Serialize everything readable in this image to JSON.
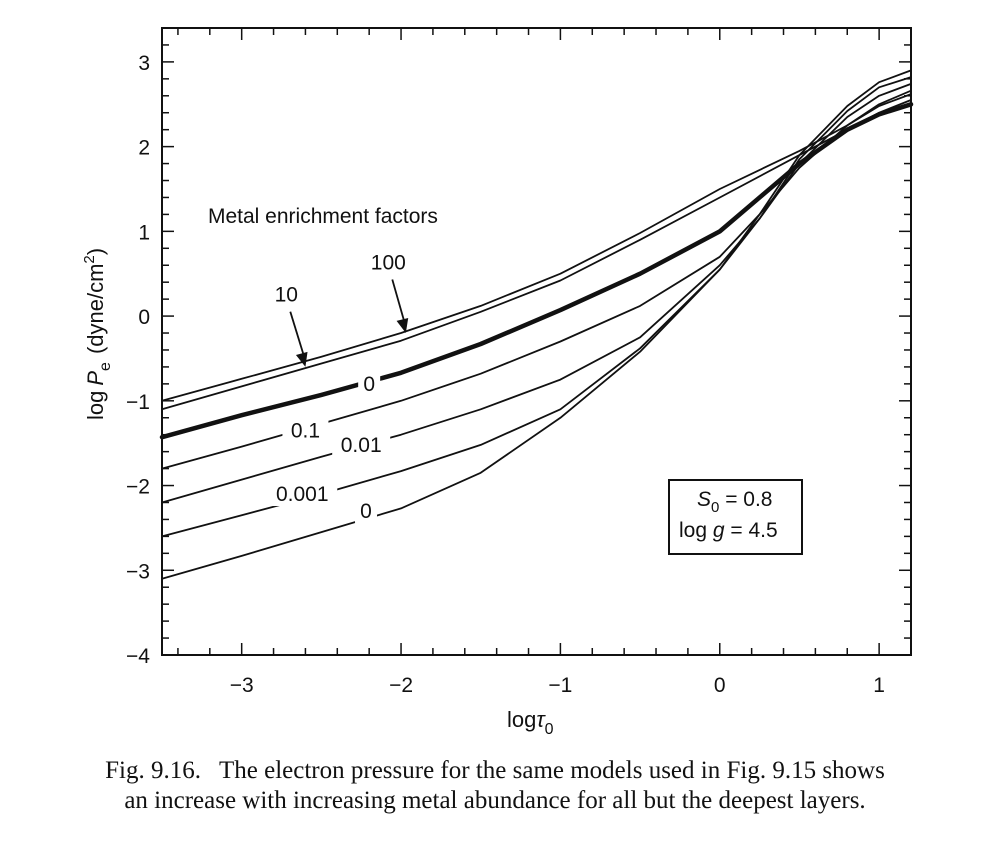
{
  "chart_data": {
    "type": "line",
    "xlabel_main": "log",
    "xlabel_symbol": "τ",
    "xlabel_sub": "0",
    "ylabel_main": "log",
    "ylabel_symbol": "P",
    "ylabel_sub": "e",
    "ylabel_units": "(dyne/cm",
    "ylabel_units_sup": "2",
    "ylabel_units_close": ")",
    "xlim": [
      -3.5,
      1.2
    ],
    "ylim": [
      -4,
      3.4
    ],
    "xticks": [
      {
        "value": -3,
        "label": "−3"
      },
      {
        "value": -2,
        "label": "−2"
      },
      {
        "value": -1,
        "label": "−1"
      },
      {
        "value": 0,
        "label": "0"
      },
      {
        "value": 1,
        "label": "1"
      }
    ],
    "yticks": [
      {
        "value": 3,
        "label": "3"
      },
      {
        "value": 2,
        "label": "2"
      },
      {
        "value": 1,
        "label": "1"
      },
      {
        "value": 0,
        "label": "0"
      },
      {
        "value": -1,
        "label": "−1"
      },
      {
        "value": -2,
        "label": "−2"
      },
      {
        "value": -3,
        "label": "−3"
      },
      {
        "value": -4,
        "label": "−4"
      }
    ],
    "legend_title": "Metal enrichment factors",
    "series": [
      {
        "name": "100",
        "style": "double-upper",
        "x": [
          -3.5,
          -3.0,
          -2.5,
          -2.0,
          -1.5,
          -1.0,
          -0.5,
          0.0,
          0.5,
          0.8,
          1.0,
          1.2
        ],
        "y": [
          -1.0,
          -0.74,
          -0.48,
          -0.2,
          0.12,
          0.5,
          0.98,
          1.5,
          1.95,
          2.25,
          2.48,
          2.62
        ]
      },
      {
        "name": "10",
        "style": "double-lower",
        "x": [
          -3.5,
          -3.0,
          -2.5,
          -2.0,
          -1.5,
          -1.0,
          -0.5,
          0.0,
          0.5,
          0.8,
          1.0,
          1.2
        ],
        "y": [
          -1.1,
          -0.83,
          -0.56,
          -0.29,
          0.05,
          0.42,
          0.9,
          1.4,
          1.9,
          2.2,
          2.4,
          2.55
        ]
      },
      {
        "name": "0",
        "style": "bold",
        "x": [
          -3.5,
          -3.0,
          -2.5,
          -2.0,
          -1.5,
          -1.0,
          -0.5,
          0.0,
          0.5,
          0.8,
          1.0,
          1.2
        ],
        "y": [
          -1.43,
          -1.17,
          -0.93,
          -0.67,
          -0.33,
          0.07,
          0.5,
          1.0,
          1.8,
          2.2,
          2.38,
          2.5
        ]
      },
      {
        "name": "0.1",
        "style": "thin",
        "x": [
          -3.5,
          -3.0,
          -2.5,
          -2.0,
          -1.5,
          -1.0,
          -0.5,
          0.0,
          0.25,
          0.5,
          0.8,
          1.0,
          1.2
        ],
        "y": [
          -1.8,
          -1.54,
          -1.27,
          -1.0,
          -0.68,
          -0.3,
          0.12,
          0.7,
          1.2,
          1.75,
          2.25,
          2.5,
          2.66
        ]
      },
      {
        "name": "0.01",
        "style": "thin",
        "x": [
          -3.5,
          -3.0,
          -2.5,
          -2.0,
          -1.5,
          -1.0,
          -0.5,
          0.0,
          0.25,
          0.5,
          0.8,
          1.0,
          1.2
        ],
        "y": [
          -2.2,
          -1.93,
          -1.66,
          -1.4,
          -1.1,
          -0.75,
          -0.25,
          0.6,
          1.15,
          1.8,
          2.35,
          2.6,
          2.74
        ]
      },
      {
        "name": "0.001",
        "style": "thin",
        "x": [
          -3.5,
          -3.0,
          -2.5,
          -2.0,
          -1.5,
          -1.0,
          -0.5,
          0.0,
          0.25,
          0.5,
          0.8,
          1.0,
          1.2
        ],
        "y": [
          -2.6,
          -2.35,
          -2.1,
          -1.83,
          -1.52,
          -1.1,
          -0.38,
          0.55,
          1.15,
          1.85,
          2.42,
          2.7,
          2.82
        ]
      },
      {
        "name": "0",
        "style": "thin",
        "x": [
          -3.5,
          -3.0,
          -2.5,
          -2.0,
          -1.5,
          -1.0,
          -0.5,
          0.0,
          0.25,
          0.5,
          0.8,
          1.0,
          1.2
        ],
        "y": [
          -3.1,
          -2.83,
          -2.55,
          -2.27,
          -1.85,
          -1.2,
          -0.42,
          0.55,
          1.2,
          1.9,
          2.48,
          2.76,
          2.9
        ]
      }
    ],
    "curve_labels": [
      {
        "text": "0",
        "x": -2.2,
        "y": -0.8
      },
      {
        "text": "0.1",
        "x": -2.6,
        "y": -1.35
      },
      {
        "text": "0.01",
        "x": -2.25,
        "y": -1.52
      },
      {
        "text": "0.001",
        "x": -2.62,
        "y": -2.1
      },
      {
        "text": "0",
        "x": -2.22,
        "y": -2.3
      }
    ],
    "arrow_labels": [
      {
        "text": "10",
        "label_x": -2.72,
        "label_y": 0.17,
        "tip_x": -2.6,
        "tip_y": -0.6
      },
      {
        "text": "100",
        "label_x": -2.08,
        "label_y": 0.55,
        "tip_x": -1.97,
        "tip_y": -0.2
      }
    ],
    "params_box": {
      "line1_symbol": "S",
      "line1_sub": "0",
      "line1_rest": " = 0.8",
      "line2_prefix": "log ",
      "line2_symbol": "g",
      "line2_rest": " = 4.5"
    }
  },
  "caption": {
    "number": "Fig. 9.16.",
    "line1": "The electron pressure for the same models used in Fig. 9.15 shows",
    "line2": "an increase with increasing metal abundance for all but the deepest layers."
  }
}
